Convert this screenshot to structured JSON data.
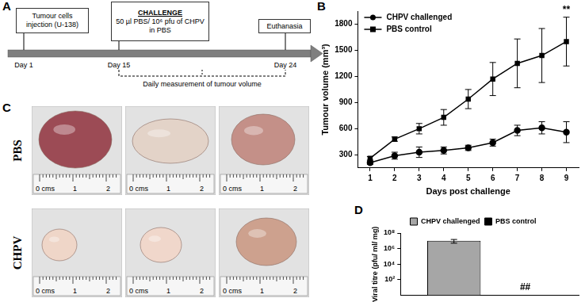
{
  "panel_labels": [
    "A",
    "B",
    "C",
    "D"
  ],
  "timeline": {
    "boxes": [
      {
        "text": "Tumour cells injection (U-138)"
      },
      {
        "heading": "CHALLENGE",
        "text": "50 µl PBS/ 10⁶ pfu of CHPV in PBS"
      },
      {
        "text": "Euthanasia"
      }
    ],
    "days": [
      "Day 1",
      "Day 15",
      "Day 24"
    ],
    "bracket_label": "Daily measurement of tumour volume"
  },
  "photos": {
    "rows": [
      "PBS",
      "CHPV"
    ],
    "ruler_labels": [
      "0 cms",
      "1",
      "2"
    ]
  },
  "chart_data": [
    {
      "type": "line",
      "x_label": "Days post challenge",
      "y_label": "Tumour volume (mm³)",
      "categories": [
        "1",
        "2",
        "3",
        "4",
        "5",
        "6",
        "7",
        "8",
        "9"
      ],
      "series": [
        {
          "name": "CHPV challenged",
          "color": "#000000",
          "marker": "circle",
          "line_style": "solid",
          "values": [
            210,
            290,
            330,
            350,
            380,
            440,
            580,
            610,
            560
          ],
          "errors": [
            20,
            40,
            60,
            40,
            30,
            40,
            60,
            70,
            120
          ]
        },
        {
          "name": "PBS control",
          "color": "#000000",
          "marker": "square",
          "line_style": "solid",
          "values": [
            260,
            480,
            600,
            730,
            940,
            1170,
            1350,
            1440,
            1600
          ],
          "errors": [
            20,
            25,
            60,
            90,
            110,
            190,
            280,
            310,
            280
          ]
        }
      ],
      "ylim": [
        150,
        1950
      ],
      "yticks": [
        300,
        600,
        900,
        1200,
        1500,
        1800
      ],
      "grid": false,
      "legend": "top-left",
      "annotations": [
        {
          "text": "**",
          "category": "9",
          "series": "PBS control"
        }
      ]
    },
    {
      "type": "bar",
      "y_label": "Viral titre (pfu/ ml/ mg)",
      "categories": [
        null
      ],
      "series": [
        {
          "name": "CHPV challenged",
          "color": "#a6a6a6",
          "values": [
            10000000
          ],
          "errors": [
            5000000
          ]
        },
        {
          "name": "PBS control",
          "color": "#000000",
          "values": [
            null
          ]
        }
      ],
      "log": "y",
      "ylim": [
        1,
        100000000
      ],
      "yticks": [
        {
          "value": 100,
          "label": "10²"
        },
        {
          "value": 10000,
          "label": "10⁴"
        },
        {
          "value": 1000000,
          "label": "10⁶"
        },
        {
          "value": 100000000,
          "label": "10⁸"
        }
      ],
      "grid": false,
      "legend": "top",
      "tick_labels": "y",
      "annotations": [
        {
          "text": "##",
          "series": "PBS control"
        }
      ]
    }
  ]
}
